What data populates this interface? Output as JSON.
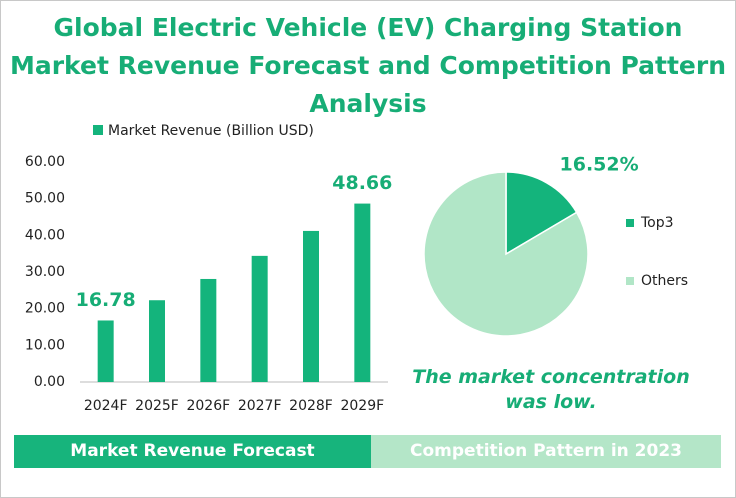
{
  "title": "Global Electric Vehicle (EV) Charging Station Market Revenue Forecast and Competition Pattern Analysis",
  "footer": [
    "Market Revenue Forecast",
    "Competition Pattern in 2023"
  ],
  "chart_data": [
    {
      "type": "bar",
      "categories": [
        "2024F",
        "2025F",
        "2026F",
        "2027F",
        "2028F",
        "2029F"
      ],
      "series": [
        {
          "name": "Market Revenue (Billion USD)",
          "color": "#14b47c",
          "values": [
            16.78,
            22.3,
            28.1,
            34.4,
            41.2,
            48.66
          ],
          "value_labels": [
            "16.78",
            null,
            null,
            null,
            null,
            "48.66"
          ]
        }
      ],
      "ylim": [
        0,
        60
      ],
      "yticks": [
        {
          "value": 0,
          "label": "0.00"
        },
        {
          "value": 10,
          "label": "10.00"
        },
        {
          "value": 20,
          "label": "20.00"
        },
        {
          "value": 30,
          "label": "30.00"
        },
        {
          "value": 40,
          "label": "40.00"
        },
        {
          "value": 50,
          "label": "50.00"
        },
        {
          "value": 60,
          "label": "60.00"
        }
      ]
    },
    {
      "type": "pie",
      "categories": [
        "Top3",
        "Others"
      ],
      "values": [
        16.52,
        83.48
      ],
      "value_labels": [
        "16.52%",
        null
      ],
      "colors": [
        "#14b47c",
        "#b1e6c7"
      ],
      "annotation": "The market concentration was low."
    }
  ]
}
